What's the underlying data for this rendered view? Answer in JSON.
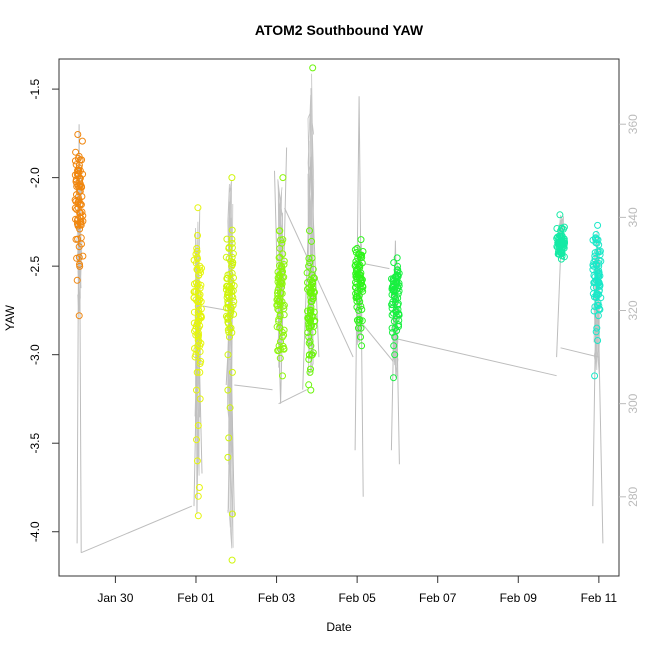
{
  "chart_data": {
    "type": "scatter",
    "title": "ATOM2 Southbound YAW",
    "xlabel": "Date",
    "ylabel": "YAW",
    "x_ticks": [
      "Jan 30",
      "Feb 01",
      "Feb 03",
      "Feb 05",
      "Feb 07",
      "Feb 09",
      "Feb 11"
    ],
    "x_tick_days": [
      30,
      32,
      34,
      36,
      38,
      40,
      42
    ],
    "x_range_days": [
      28.6,
      42.5
    ],
    "y_ticks": [
      "-4.0",
      "-3.5",
      "-3.0",
      "-2.5",
      "-2.0",
      "-1.5"
    ],
    "y_tick_values": [
      -4.0,
      -3.5,
      -3.0,
      -2.5,
      -2.0,
      -1.5
    ],
    "ylim": [
      -4.25,
      -1.33
    ],
    "y2_ticks": [
      "280",
      "300",
      "320",
      "340",
      "360"
    ],
    "y2_tick_values": [
      280,
      300,
      320,
      340,
      360
    ],
    "y2lim": [
      263,
      374
    ],
    "grid": false,
    "legend": "none",
    "colors": {
      "line": "#bdbdbd",
      "y2_ticks": "#bbbbbb",
      "axes": "#333333"
    },
    "clusters": [
      {
        "day": 29.1,
        "color": "#f0860e",
        "min": -2.78,
        "max": -1.88,
        "center": -2.1,
        "points": [
          -1.88,
          -1.9,
          -1.93,
          -1.96,
          -1.99,
          -2.02,
          -2.05,
          -2.08,
          -2.11,
          -2.14,
          -2.17,
          -2.2,
          -2.23,
          -2.26,
          -2.29,
          -2.34,
          -2.45,
          -2.49,
          -2.58,
          -2.78
        ]
      },
      {
        "day": 32.05,
        "color": "#e5f50c",
        "min": -3.91,
        "max": -2.17,
        "center": -2.72,
        "points": [
          -2.17,
          -2.4,
          -2.45,
          -2.5,
          -2.55,
          -2.6,
          -2.65,
          -2.7,
          -2.75,
          -2.8,
          -2.85,
          -2.9,
          -2.95,
          -3.0,
          -3.05,
          -3.1,
          -3.2,
          -3.25,
          -3.4,
          -3.48,
          -3.6,
          -3.75,
          -3.8,
          -3.91
        ]
      },
      {
        "day": 32.85,
        "color": "#d0f50c",
        "min": -4.16,
        "max": -2.0,
        "center": -2.65,
        "points": [
          -2.0,
          -2.4,
          -2.45,
          -2.5,
          -2.55,
          -2.6,
          -2.65,
          -2.7,
          -2.75,
          -2.8,
          -2.85,
          -2.9,
          -3.0,
          -3.1,
          -3.2,
          -3.3,
          -3.47,
          -3.58,
          -3.9,
          -4.16
        ]
      },
      {
        "day": 34.1,
        "color": "#8ef50c",
        "min": -3.12,
        "max": -2.0,
        "center": -2.65,
        "points": [
          -2.0,
          -2.3,
          -2.35,
          -2.4,
          -2.45,
          -2.5,
          -2.55,
          -2.6,
          -2.65,
          -2.7,
          -2.75,
          -2.8,
          -2.85,
          -2.9,
          -2.95,
          -3.02,
          -3.12
        ]
      },
      {
        "day": 34.85,
        "color": "#6cf50c",
        "min": -3.2,
        "max": -1.38,
        "center": -2.72,
        "points": [
          -1.38,
          -2.3,
          -2.36,
          -2.48,
          -2.55,
          -2.6,
          -2.65,
          -2.7,
          -2.75,
          -2.8,
          -2.85,
          -2.9,
          -2.95,
          -3.0,
          -3.1,
          -3.17,
          -3.2
        ]
      },
      {
        "day": 36.05,
        "color": "#2ef51a",
        "min": -2.95,
        "max": -2.35,
        "center": -2.6,
        "points": [
          -2.35,
          -2.4,
          -2.45,
          -2.5,
          -2.55,
          -2.6,
          -2.65,
          -2.7,
          -2.75,
          -2.8,
          -2.85,
          -2.9,
          -2.95
        ]
      },
      {
        "day": 36.95,
        "color": "#18f040",
        "min": -3.13,
        "max": -2.48,
        "center": -2.7,
        "points": [
          -2.48,
          -2.52,
          -2.56,
          -2.6,
          -2.64,
          -2.68,
          -2.72,
          -2.76,
          -2.8,
          -2.85,
          -2.9,
          -2.95,
          -3.0,
          -3.13
        ]
      },
      {
        "day": 41.05,
        "color": "#14eaa5",
        "min": -2.46,
        "max": -2.21,
        "center": -2.38,
        "points": [
          -2.21,
          -2.3,
          -2.33,
          -2.38,
          -2.42,
          -2.46
        ]
      },
      {
        "day": 41.95,
        "color": "#1ae8c8",
        "min": -3.12,
        "max": -2.27,
        "center": -2.55,
        "points": [
          -2.27,
          -2.34,
          -2.38,
          -2.42,
          -2.46,
          -2.5,
          -2.54,
          -2.58,
          -2.62,
          -2.66,
          -2.72,
          -2.78,
          -2.85,
          -2.92,
          -3.12
        ]
      }
    ],
    "line_segments": [
      {
        "x": [
          29.05,
          29.1,
          29.15
        ],
        "y2": [
          270,
          360,
          268
        ]
      },
      {
        "x": [
          29.15,
          31.9
        ],
        "y2": [
          268,
          278
        ]
      },
      {
        "x": [
          31.95,
          32.05,
          32.15
        ],
        "y2": [
          278,
          322,
          285
        ]
      },
      {
        "x": [
          32.15,
          32.8
        ],
        "y2": [
          321,
          320
        ]
      },
      {
        "x": [
          32.75,
          32.85,
          32.95
        ],
        "y2": [
          304,
          320,
          276
        ]
      },
      {
        "x": [
          32.95,
          33.9
        ],
        "y2": [
          304,
          303
        ]
      },
      {
        "x": [
          33.95,
          34.1,
          34.25
        ],
        "y2": [
          350,
          300,
          355
        ]
      },
      {
        "x": [
          34.05,
          34.75
        ],
        "y2": [
          300,
          303
        ]
      },
      {
        "x": [
          34.65,
          34.85,
          35.05
        ],
        "y2": [
          303,
          353,
          310
        ]
      },
      {
        "x": [
          34.2,
          35.9
        ],
        "y2": [
          342,
          310
        ]
      },
      {
        "x": [
          35.95,
          36.05,
          36.15
        ],
        "y2": [
          290,
          366,
          280
        ]
      },
      {
        "x": [
          36.2,
          36.8
        ],
        "y2": [
          330,
          329
        ]
      },
      {
        "x": [
          36.05,
          36.9
        ],
        "y2": [
          318,
          309
        ]
      },
      {
        "x": [
          36.85,
          36.95,
          37.05
        ],
        "y2": [
          290,
          335,
          287
        ]
      },
      {
        "x": [
          36.95,
          40.95
        ],
        "y2": [
          314,
          306
        ]
      },
      {
        "x": [
          40.95,
          41.05
        ],
        "y2": [
          310,
          332
        ]
      },
      {
        "x": [
          41.05,
          42.0
        ],
        "y2": [
          312,
          310
        ]
      },
      {
        "x": [
          41.85,
          41.95,
          42.1
        ],
        "y2": [
          278,
          335,
          270
        ]
      }
    ]
  }
}
